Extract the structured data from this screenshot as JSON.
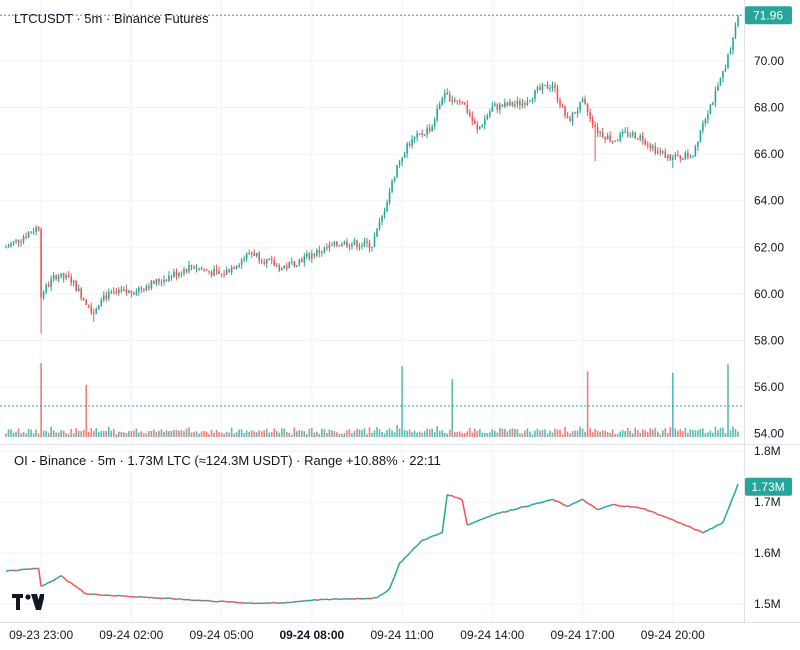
{
  "price_pane": {
    "title": "LTCUSDT · 5m · Binance Futures",
    "last_price_label": "71.96",
    "y_ticks": [
      "70.00",
      "68.00",
      "66.00",
      "64.00",
      "62.00",
      "60.00",
      "58.00",
      "56.00",
      "54.00"
    ]
  },
  "oi_pane": {
    "title": "OI - Binance · 5m · 1.73M LTC (≈124.3M USDT) · Range +10.88% · 22:11",
    "last_value_label": "1.73M",
    "y_ticks": [
      "1.8M",
      "1.7M",
      "1.6M",
      "1.5M"
    ]
  },
  "x_ticks": [
    "09-23 23:00",
    "09-24 02:00",
    "09-24 05:00",
    "09-24 08:00",
    "09-24 11:00",
    "09-24 14:00",
    "09-24 17:00",
    "09-24 20:00"
  ],
  "x_tick_bold": "09-24 08:00",
  "colors": {
    "up": "#26a69a",
    "down": "#ef5350",
    "grid": "#f0f3fa",
    "axis_text": "#131722"
  },
  "chart_data": [
    {
      "type": "candlestick",
      "title": "LTCUSDT · 5m · Binance Futures",
      "x_range": [
        "09-23 21:50",
        "09-24 22:10"
      ],
      "ylim": [
        53.6,
        72.1
      ],
      "close_anchors": [
        [
          "09-23 21:50",
          62.0
        ],
        [
          "09-23 22:20",
          62.4
        ],
        [
          "09-23 22:55",
          62.9
        ],
        [
          "09-23 23:00",
          60.0
        ],
        [
          "09-23 23:30",
          60.8
        ],
        [
          "09-24 00:00",
          60.6
        ],
        [
          "09-24 00:25",
          59.8
        ],
        [
          "09-24 00:45",
          59.2
        ],
        [
          "09-24 01:00",
          59.9
        ],
        [
          "09-24 02:00",
          60.1
        ],
        [
          "09-24 03:00",
          60.6
        ],
        [
          "09-24 04:00",
          61.2
        ],
        [
          "09-24 05:00",
          60.8
        ],
        [
          "09-24 06:00",
          61.8
        ],
        [
          "09-24 06:30",
          61.4
        ],
        [
          "09-24 07:00",
          61.1
        ],
        [
          "09-24 08:00",
          61.7
        ],
        [
          "09-24 09:00",
          62.2
        ],
        [
          "09-24 10:00",
          62.1
        ],
        [
          "09-24 10:20",
          63.3
        ],
        [
          "09-24 10:50",
          65.5
        ],
        [
          "09-24 11:10",
          66.4
        ],
        [
          "09-24 12:00",
          67.2
        ],
        [
          "09-24 12:20",
          68.5
        ],
        [
          "09-24 13:00",
          68.3
        ],
        [
          "09-24 13:30",
          67.0
        ],
        [
          "09-24 14:00",
          68.0
        ],
        [
          "09-24 15:00",
          68.2
        ],
        [
          "09-24 15:30",
          68.7
        ],
        [
          "09-24 16:00",
          69.0
        ],
        [
          "09-24 16:30",
          67.4
        ],
        [
          "09-24 17:00",
          68.2
        ],
        [
          "09-24 17:30",
          67.0
        ],
        [
          "09-24 18:00",
          66.6
        ],
        [
          "09-24 18:30",
          66.9
        ],
        [
          "09-24 19:00",
          66.7
        ],
        [
          "09-24 19:30",
          66.1
        ],
        [
          "09-24 20:00",
          65.8
        ],
        [
          "09-24 20:40",
          66.0
        ],
        [
          "09-24 21:00",
          67.4
        ],
        [
          "09-24 21:30",
          68.8
        ],
        [
          "09-24 21:50",
          70.2
        ],
        [
          "09-24 22:10",
          71.96
        ]
      ],
      "notable_lows": [
        [
          "09-23 23:00",
          58.3
        ],
        [
          "09-24 00:45",
          58.8
        ],
        [
          "09-24 17:25",
          65.7
        ],
        [
          "09-24 20:00",
          65.4
        ]
      ],
      "last_price": 71.96,
      "y_axis_ticks": [
        70,
        68,
        66,
        64,
        62,
        60,
        58,
        56,
        54
      ]
    },
    {
      "type": "bar",
      "title": "Volume",
      "note": "volume overlaid at bottom of price pane (no volume axis printed)",
      "spikes": [
        "09-23 23:00",
        "09-24 00:30",
        "09-24 11:00",
        "09-24 12:40",
        "09-24 17:10",
        "09-24 20:00",
        "09-24 21:50"
      ]
    },
    {
      "type": "line",
      "title": "OI - Binance · 5m · 1.73M LTC (≈124.3M USDT) · Range +10.88% · 22:11",
      "ylim": [
        1.465,
        1.81
      ],
      "unit": "M LTC",
      "anchors": [
        [
          "09-23 21:50",
          1.565
        ],
        [
          "09-23 22:55",
          1.57
        ],
        [
          "09-23 23:00",
          1.535
        ],
        [
          "09-23 23:40",
          1.555
        ],
        [
          "09-24 00:30",
          1.52
        ],
        [
          "09-24 02:00",
          1.515
        ],
        [
          "09-24 03:30",
          1.51
        ],
        [
          "09-24 05:00",
          1.505
        ],
        [
          "09-24 06:00",
          1.502
        ],
        [
          "09-24 07:00",
          1.502
        ],
        [
          "09-24 08:00",
          1.508
        ],
        [
          "09-24 09:00",
          1.51
        ],
        [
          "09-24 10:10",
          1.512
        ],
        [
          "09-24 10:35",
          1.53
        ],
        [
          "09-24 10:55",
          1.58
        ],
        [
          "09-24 11:40",
          1.625
        ],
        [
          "09-24 12:20",
          1.64
        ],
        [
          "09-24 12:30",
          1.715
        ],
        [
          "09-24 13:00",
          1.705
        ],
        [
          "09-24 13:10",
          1.655
        ],
        [
          "09-24 14:00",
          1.675
        ],
        [
          "09-24 15:00",
          1.69
        ],
        [
          "09-24 16:00",
          1.705
        ],
        [
          "09-24 16:30",
          1.692
        ],
        [
          "09-24 17:00",
          1.705
        ],
        [
          "09-24 17:30",
          1.685
        ],
        [
          "09-24 18:00",
          1.695
        ],
        [
          "09-24 19:00",
          1.688
        ],
        [
          "09-24 20:00",
          1.665
        ],
        [
          "09-24 21:00",
          1.64
        ],
        [
          "09-24 21:40",
          1.66
        ],
        [
          "09-24 22:10",
          1.735
        ]
      ],
      "last_value": 1.73,
      "y_axis_ticks": [
        1.8,
        1.7,
        1.6,
        1.5
      ]
    }
  ]
}
